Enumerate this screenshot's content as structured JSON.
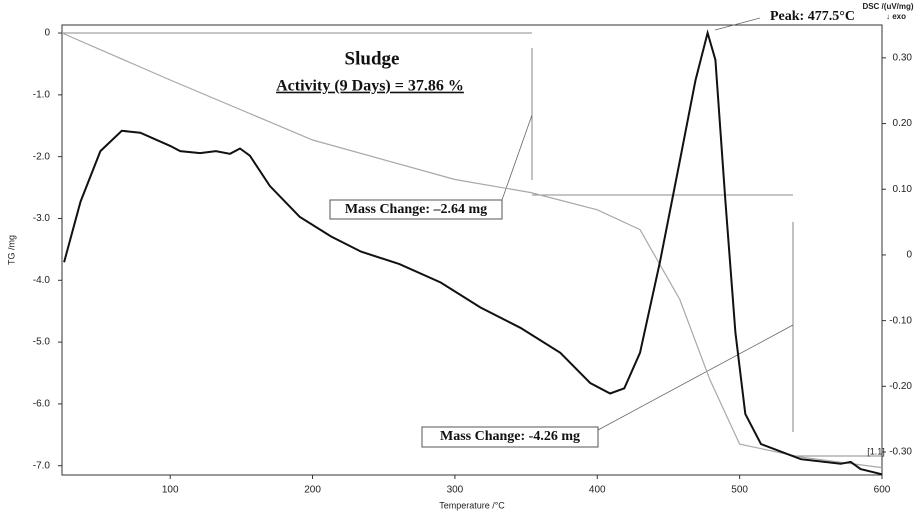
{
  "chart_data": {
    "type": "line",
    "title": "Sludge",
    "subtitle": "Activity (9 Days) = 37.86 %",
    "xlabel": "Temperature /°C",
    "ylabel": "TG /mg",
    "y2label": "DSC /(uV/mg)",
    "y2note": "↓ exo",
    "annotations": [
      "Peak: 477.5°C",
      "Mass Change: –2.64 mg",
      "Mass Change: -4.26 mg",
      "[1.1]"
    ],
    "xlim": [
      24,
      600
    ],
    "xticks": [
      100,
      200,
      300,
      400,
      500,
      600
    ],
    "ylim": [
      -7.15,
      0.13
    ],
    "yticks": [
      0,
      {
        "value": -1,
        "label": "-1.0"
      },
      {
        "value": -2,
        "label": "-2.0"
      },
      {
        "value": -3,
        "label": "-3.0"
      },
      {
        "value": -4,
        "label": "-4.0"
      },
      {
        "value": -5,
        "label": "-5.0"
      },
      {
        "value": -6,
        "label": "-6.0"
      },
      {
        "value": -7,
        "label": "-7.0"
      }
    ],
    "y2lim": [
      -0.335,
      0.35
    ],
    "y2ticks": [
      {
        "value": 0.3,
        "label": "0.30"
      },
      {
        "value": 0.2,
        "label": "0.20"
      },
      {
        "value": 0.1,
        "label": "0.10"
      },
      0,
      {
        "value": -0.1,
        "label": "-0.10"
      },
      {
        "value": -0.2,
        "label": "-0.20"
      },
      {
        "value": -0.3,
        "label": "-0.30"
      }
    ],
    "series": [
      {
        "color": "#a8a8a8",
        "axis": "y",
        "x": [
          24,
          100,
          200,
          300,
          353,
          400,
          430,
          458,
          479,
          500,
          543,
          600
        ],
        "values": [
          0,
          -0.76,
          -1.73,
          -2.37,
          -2.58,
          -2.86,
          -3.18,
          -4.31,
          -5.6,
          -6.65,
          -6.86,
          -7.03
        ]
      },
      {
        "color": "#111111",
        "axis": "y2",
        "x": [
          25.5,
          37,
          51,
          66,
          79,
          100,
          107,
          121,
          132,
          142,
          149,
          156,
          170,
          191,
          213,
          234,
          261,
          290,
          318,
          346,
          374,
          395,
          409,
          419,
          430,
          444,
          458,
          469,
          477.5,
          483,
          490,
          497,
          504,
          515,
          543,
          571,
          578,
          585,
          600
        ],
        "values": [
          -0.011,
          0.081,
          0.158,
          0.189,
          0.186,
          0.166,
          0.158,
          0.155,
          0.158,
          0.154,
          0.162,
          0.151,
          0.105,
          0.058,
          0.028,
          0.005,
          -0.014,
          -0.042,
          -0.08,
          -0.111,
          -0.149,
          -0.195,
          -0.211,
          -0.203,
          -0.149,
          -0.011,
          0.143,
          0.266,
          0.338,
          0.297,
          0.082,
          -0.118,
          -0.242,
          -0.288,
          -0.311,
          -0.318,
          -0.315,
          -0.326,
          -0.334
        ]
      }
    ]
  }
}
